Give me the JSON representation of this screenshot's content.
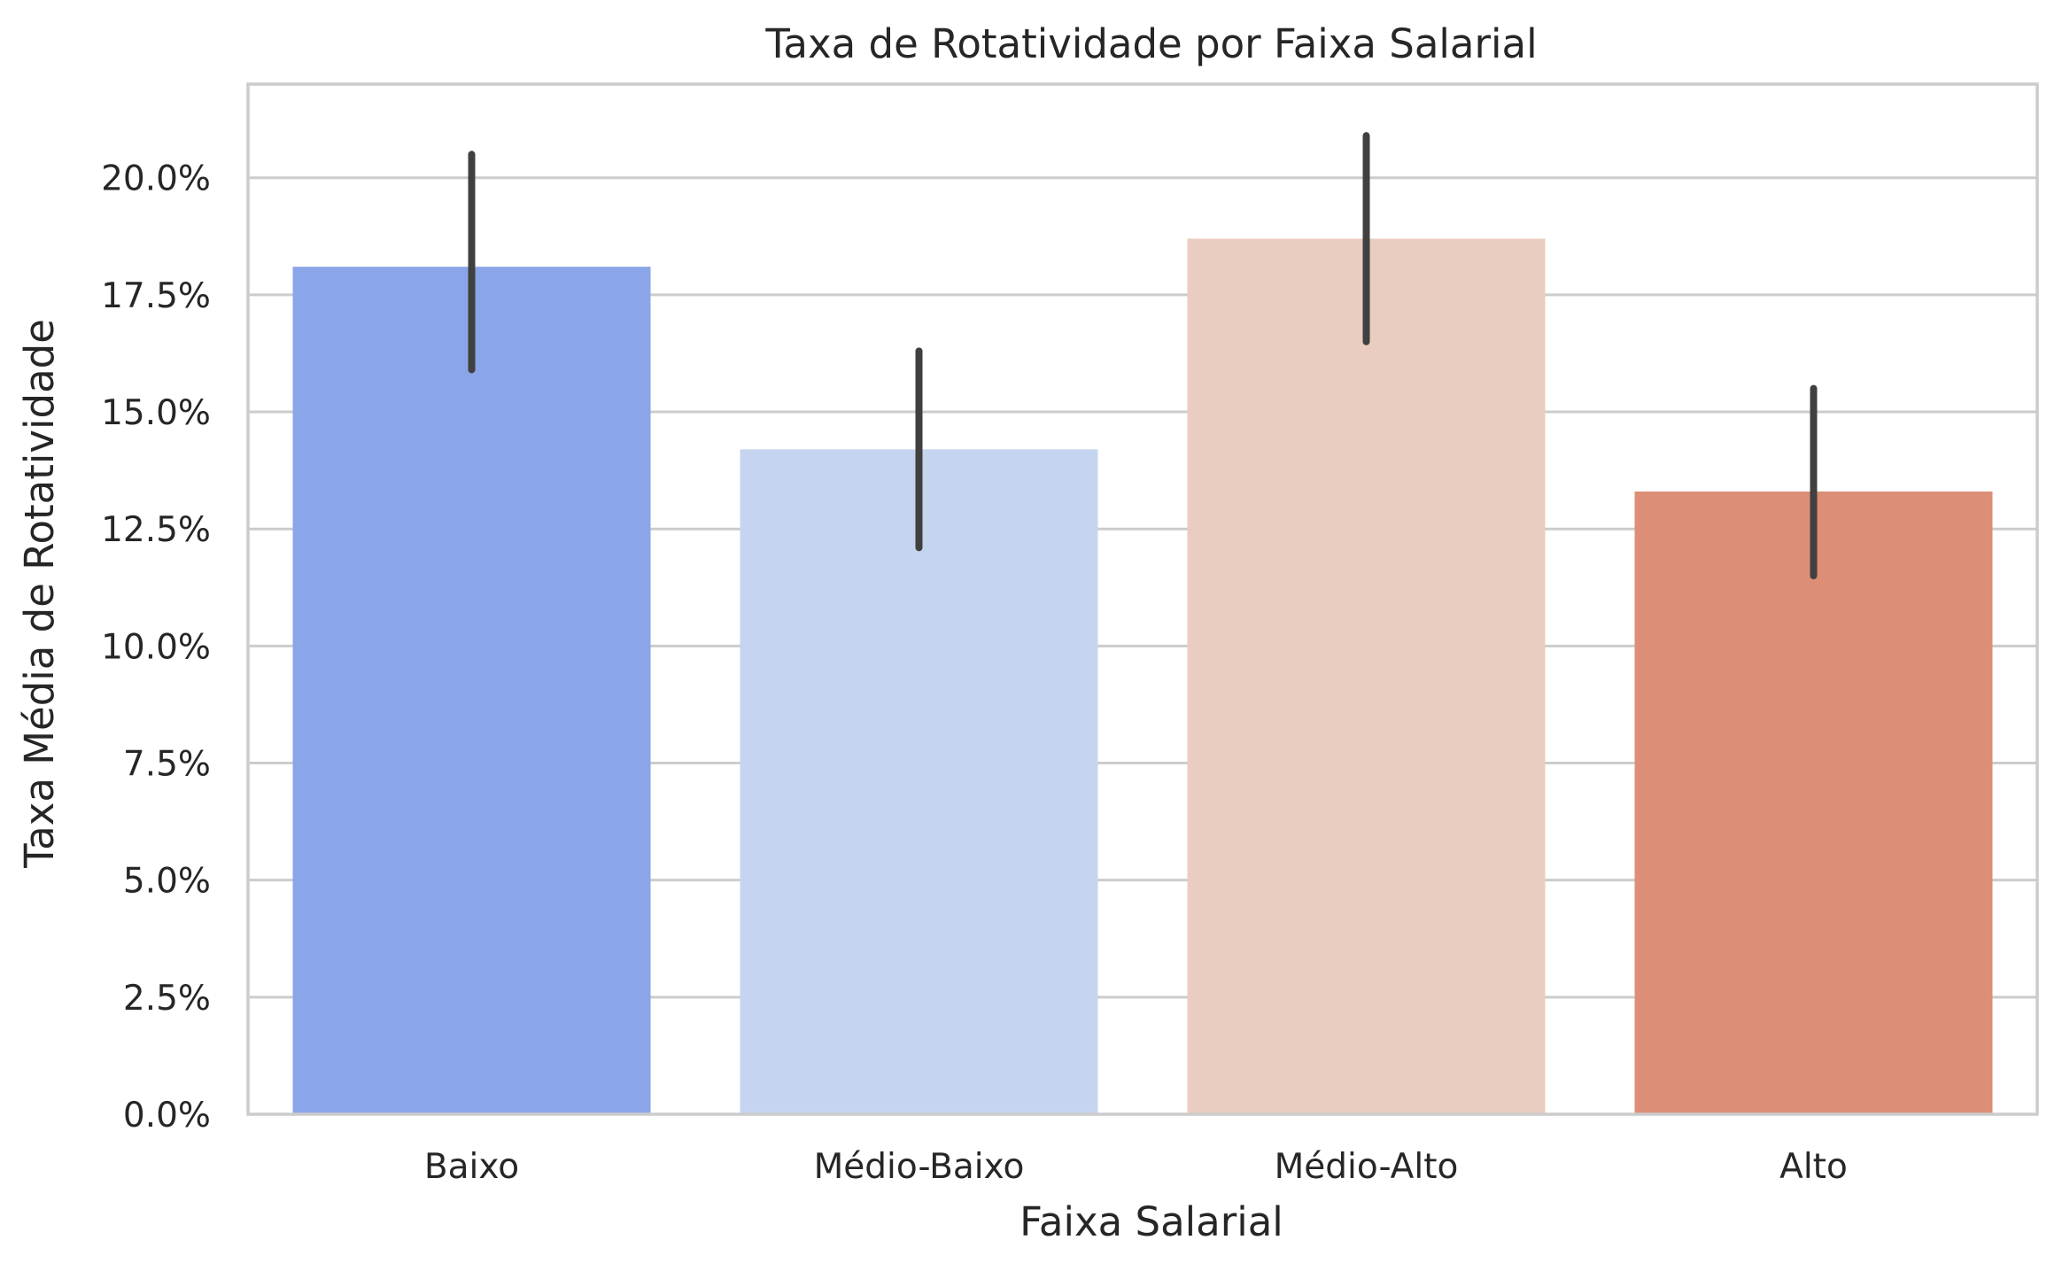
{
  "chart_data": {
    "type": "bar",
    "title": "Taxa de Rotatividade por Faixa Salarial",
    "xlabel": "Faixa Salarial",
    "ylabel": "Taxa Média de Rotatividade",
    "categories": [
      "Baixo",
      "Médio-Baixo",
      "Médio-Alto",
      "Alto"
    ],
    "values": [
      0.181,
      0.142,
      0.187,
      0.133
    ],
    "error_low": [
      0.159,
      0.121,
      0.165,
      0.115
    ],
    "error_high": [
      0.205,
      0.163,
      0.209,
      0.155
    ],
    "colors": [
      "#8aa6e8",
      "#c6d5ef",
      "#e9cdc0",
      "#dc8e77"
    ],
    "ylim": [
      0,
      0.22
    ],
    "yticks": [
      0,
      0.025,
      0.05,
      0.075,
      0.1,
      0.125,
      0.15,
      0.175,
      0.2
    ],
    "ytick_labels": [
      "0.0%",
      "2.5%",
      "5.0%",
      "7.5%",
      "10.0%",
      "12.5%",
      "15.0%",
      "17.5%",
      "20.0%"
    ],
    "grid": "horizontal",
    "legend": "none"
  }
}
